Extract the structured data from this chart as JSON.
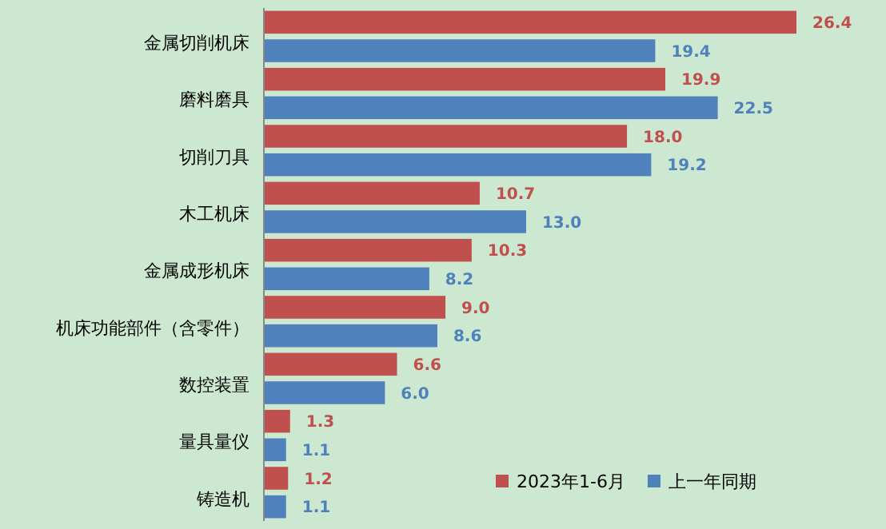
{
  "chart_data": {
    "type": "bar",
    "orientation": "horizontal",
    "categories": [
      "金属切削机床",
      "磨料磨具",
      "切削刀具",
      "木工机床",
      "金属成形机床",
      "机床功能部件（含零件）",
      "数控装置",
      "量具量仪",
      "铸造机"
    ],
    "series": [
      {
        "name": "2023年1-6月",
        "color": "#c0504d",
        "values": [
          26.4,
          19.9,
          18.0,
          10.7,
          10.3,
          9.0,
          6.6,
          1.3,
          1.2
        ],
        "value_labels": [
          "26.4",
          "19.9",
          "18.0",
          "10.7",
          "10.3",
          "9.0",
          "6.6",
          "1.3",
          "1.2"
        ]
      },
      {
        "name": "上一年同期",
        "color": "#4f81bd",
        "values": [
          19.4,
          22.5,
          19.2,
          13.0,
          8.2,
          8.6,
          6.0,
          1.1,
          1.1
        ],
        "value_labels": [
          "19.4",
          "22.5",
          "19.2",
          "13.0",
          "8.2",
          "8.6",
          "6.0",
          "1.1",
          "1.1"
        ]
      }
    ],
    "legend": "bottom right"
  }
}
